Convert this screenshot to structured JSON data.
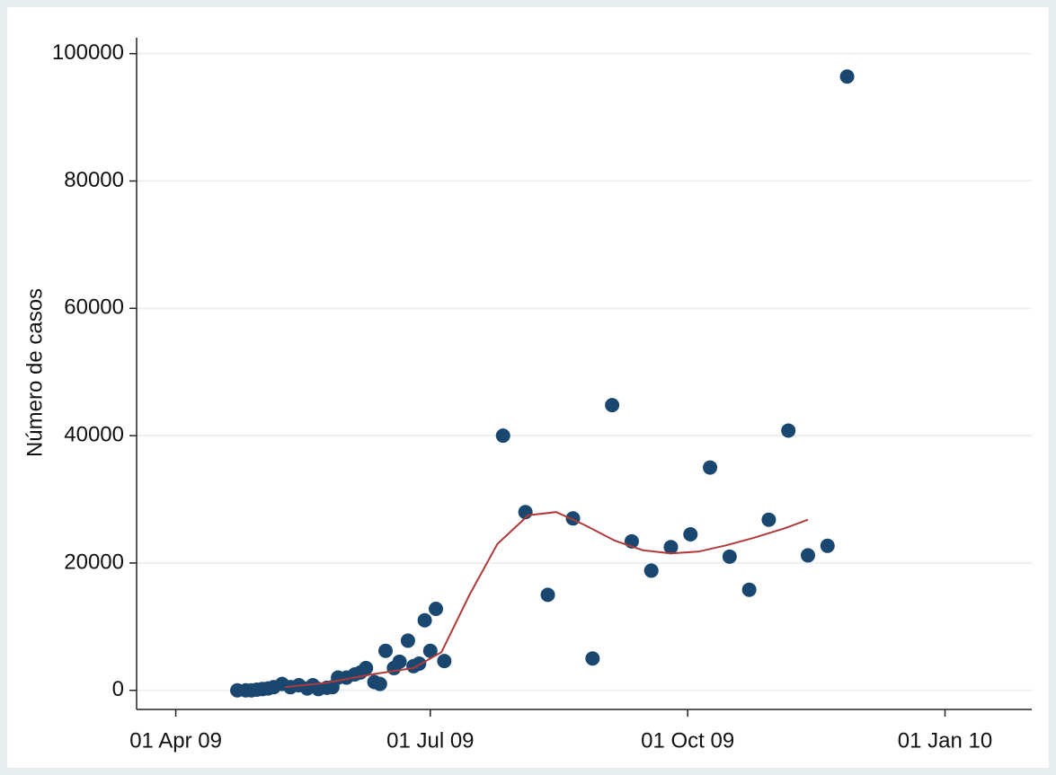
{
  "chart_data": {
    "type": "scatter",
    "y_label": "Número de casos",
    "ylim": [
      -3000,
      102500
    ],
    "yticks": [
      0,
      20000,
      40000,
      60000,
      80000,
      100000
    ],
    "xlim": [
      "2009-03-18",
      "2010-02-01"
    ],
    "xticks": [
      {
        "value": "2009-04-01",
        "label": "01 Apr 09"
      },
      {
        "value": "2009-07-01",
        "label": "01 Jul 09"
      },
      {
        "value": "2009-10-01",
        "label": "01 Oct 09"
      },
      {
        "value": "2010-01-01",
        "label": "01 Jan 10"
      }
    ],
    "grid": true,
    "series": [
      {
        "type": "scatter",
        "color": "#1a476f",
        "x": [
          "2009-04-23",
          "2009-04-26",
          "2009-04-28",
          "2009-04-30",
          "2009-05-02",
          "2009-05-04",
          "2009-05-06",
          "2009-05-09",
          "2009-05-12",
          "2009-05-15",
          "2009-05-18",
          "2009-05-20",
          "2009-05-22",
          "2009-05-25",
          "2009-05-27",
          "2009-05-29",
          "2009-06-01",
          "2009-06-04",
          "2009-06-06",
          "2009-06-08",
          "2009-06-11",
          "2009-06-13",
          "2009-06-15",
          "2009-06-18",
          "2009-06-20",
          "2009-06-23",
          "2009-06-25",
          "2009-06-27",
          "2009-06-29",
          "2009-07-01",
          "2009-07-03",
          "2009-07-06",
          "2009-07-27",
          "2009-08-04",
          "2009-08-12",
          "2009-08-21",
          "2009-08-28",
          "2009-09-04",
          "2009-09-11",
          "2009-09-18",
          "2009-09-25",
          "2009-10-02",
          "2009-10-09",
          "2009-10-16",
          "2009-10-23",
          "2009-10-30",
          "2009-11-06",
          "2009-11-13",
          "2009-11-20",
          "2009-11-27"
        ],
        "values": [
          0,
          0,
          0,
          100,
          200,
          300,
          500,
          1000,
          500,
          800,
          300,
          800,
          200,
          400,
          500,
          2000,
          2000,
          2500,
          2800,
          3500,
          1300,
          1000,
          6200,
          3500,
          4500,
          7800,
          3800,
          4200,
          11000,
          6200,
          12800,
          4600,
          40000,
          28000,
          15000,
          27000,
          5000,
          44800,
          23400,
          18800,
          22500,
          24500,
          35000,
          21000,
          15800,
          26800,
          40800,
          21200,
          22700,
          96400
        ]
      },
      {
        "type": "line",
        "color": "#b03a3a",
        "x": [
          "2009-05-10",
          "2009-05-25",
          "2009-06-10",
          "2009-06-25",
          "2009-07-05",
          "2009-07-15",
          "2009-07-25",
          "2009-08-05",
          "2009-08-15",
          "2009-08-25",
          "2009-09-05",
          "2009-09-15",
          "2009-09-25",
          "2009-10-05",
          "2009-10-15",
          "2009-10-25",
          "2009-11-05",
          "2009-11-13"
        ],
        "values": [
          500,
          1200,
          2500,
          3500,
          6000,
          15000,
          23000,
          27500,
          28000,
          26000,
          23500,
          22000,
          21500,
          21800,
          22800,
          24000,
          25500,
          26800
        ]
      }
    ]
  }
}
